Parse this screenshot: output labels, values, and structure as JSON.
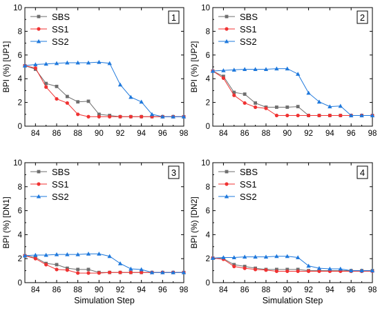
{
  "figure": {
    "xlabel": "Simulation Step"
  },
  "chart_data": [
    {
      "type": "line",
      "panel_label": "1",
      "ylabel": "BPI (%) [UP1]",
      "xlabel": "",
      "xlim": [
        83,
        98
      ],
      "ylim": [
        0,
        10
      ],
      "x_ticks": [
        84,
        86,
        88,
        90,
        92,
        94,
        96,
        98
      ],
      "y_ticks": [
        0,
        2,
        4,
        6,
        8,
        10
      ],
      "legend_position": "top-left",
      "grid": false,
      "x": [
        83,
        84,
        85,
        86,
        87,
        88,
        89,
        90,
        91,
        92,
        93,
        94,
        95,
        96,
        97,
        98
      ],
      "series": [
        {
          "name": "SBS",
          "color": "#6e6e6e",
          "marker": "square",
          "values": [
            5.1,
            4.8,
            3.6,
            3.35,
            2.5,
            2.05,
            2.1,
            1.0,
            0.9,
            0.8,
            0.8,
            0.8,
            0.8,
            0.8,
            0.8,
            0.8
          ]
        },
        {
          "name": "SS1",
          "color": "#f03232",
          "marker": "circle",
          "values": [
            5.1,
            4.9,
            3.3,
            2.3,
            1.95,
            1.0,
            0.8,
            0.8,
            0.8,
            0.8,
            0.8,
            0.8,
            0.8,
            0.8,
            0.8,
            0.8
          ]
        },
        {
          "name": "SS2",
          "color": "#1e78dc",
          "marker": "triangle",
          "values": [
            5.1,
            5.2,
            5.25,
            5.3,
            5.35,
            5.35,
            5.35,
            5.4,
            5.3,
            3.5,
            2.45,
            2.05,
            1.0,
            0.8,
            0.8,
            0.8
          ]
        }
      ]
    },
    {
      "type": "line",
      "panel_label": "2",
      "ylabel": "BPI (%) [UP2]",
      "xlabel": "",
      "xlim": [
        83,
        98
      ],
      "ylim": [
        0,
        10
      ],
      "x_ticks": [
        84,
        86,
        88,
        90,
        92,
        94,
        96,
        98
      ],
      "y_ticks": [
        0,
        2,
        4,
        6,
        8,
        10
      ],
      "legend_position": "top-left",
      "grid": false,
      "x": [
        83,
        84,
        85,
        86,
        87,
        88,
        89,
        90,
        91,
        92,
        93,
        94,
        95,
        96,
        97,
        98
      ],
      "series": [
        {
          "name": "SBS",
          "color": "#6e6e6e",
          "marker": "square",
          "values": [
            4.65,
            4.2,
            2.85,
            2.7,
            1.95,
            1.6,
            1.6,
            1.6,
            1.65,
            0.9,
            0.9,
            0.9,
            0.9,
            0.9,
            0.9,
            0.9
          ]
        },
        {
          "name": "SS1",
          "color": "#f03232",
          "marker": "circle",
          "values": [
            4.65,
            4.05,
            2.6,
            1.95,
            1.6,
            1.5,
            0.9,
            0.9,
            0.9,
            0.9,
            0.9,
            0.9,
            0.9,
            0.9,
            0.9,
            0.9
          ]
        },
        {
          "name": "SS2",
          "color": "#1e78dc",
          "marker": "triangle",
          "values": [
            4.65,
            4.7,
            4.75,
            4.8,
            4.8,
            4.8,
            4.85,
            4.85,
            4.4,
            2.8,
            2.05,
            1.65,
            1.7,
            0.9,
            0.9,
            0.9
          ]
        }
      ]
    },
    {
      "type": "line",
      "panel_label": "3",
      "ylabel": "BPI (%) [DN1]",
      "xlabel": "Simulation Step",
      "xlim": [
        83,
        98
      ],
      "ylim": [
        0,
        10
      ],
      "x_ticks": [
        84,
        86,
        88,
        90,
        92,
        94,
        96,
        98
      ],
      "y_ticks": [
        0,
        2,
        4,
        6,
        8,
        10
      ],
      "legend_position": "top-left",
      "grid": false,
      "x": [
        83,
        84,
        85,
        86,
        87,
        88,
        89,
        90,
        91,
        92,
        93,
        94,
        95,
        96,
        97,
        98
      ],
      "series": [
        {
          "name": "SBS",
          "color": "#6e6e6e",
          "marker": "square",
          "values": [
            2.25,
            2.1,
            1.6,
            1.5,
            1.2,
            1.1,
            1.1,
            0.85,
            0.85,
            0.85,
            0.85,
            0.85,
            0.85,
            0.85,
            0.85,
            0.85
          ]
        },
        {
          "name": "SS1",
          "color": "#f03232",
          "marker": "circle",
          "values": [
            2.25,
            2.0,
            1.5,
            1.1,
            1.05,
            0.8,
            0.8,
            0.8,
            0.85,
            0.85,
            0.85,
            0.85,
            0.85,
            0.85,
            0.85,
            0.85
          ]
        },
        {
          "name": "SS2",
          "color": "#1e78dc",
          "marker": "triangle",
          "values": [
            2.25,
            2.3,
            2.3,
            2.35,
            2.35,
            2.35,
            2.4,
            2.4,
            2.2,
            1.6,
            1.15,
            1.1,
            0.85,
            0.85,
            0.85,
            0.85
          ]
        }
      ]
    },
    {
      "type": "line",
      "panel_label": "4",
      "ylabel": "BPI (%) [DN2]",
      "xlabel": "Simulation Step",
      "xlim": [
        83,
        98
      ],
      "ylim": [
        0,
        10
      ],
      "x_ticks": [
        84,
        86,
        88,
        90,
        92,
        94,
        96,
        98
      ],
      "y_ticks": [
        0,
        2,
        4,
        6,
        8,
        10
      ],
      "legend_position": "top-left",
      "grid": false,
      "x": [
        83,
        84,
        85,
        86,
        87,
        88,
        89,
        90,
        91,
        92,
        93,
        94,
        95,
        96,
        97,
        98
      ],
      "series": [
        {
          "name": "SBS",
          "color": "#6e6e6e",
          "marker": "square",
          "values": [
            2.05,
            2.0,
            1.5,
            1.35,
            1.2,
            1.1,
            1.1,
            1.1,
            1.1,
            1.0,
            1.0,
            1.0,
            1.0,
            1.0,
            1.0,
            1.0
          ]
        },
        {
          "name": "SS1",
          "color": "#f03232",
          "marker": "circle",
          "values": [
            2.05,
            1.95,
            1.35,
            1.2,
            1.1,
            1.05,
            0.95,
            0.95,
            0.95,
            0.95,
            0.95,
            0.95,
            0.95,
            0.95,
            0.95,
            0.95
          ]
        },
        {
          "name": "SS2",
          "color": "#1e78dc",
          "marker": "triangle",
          "values": [
            2.05,
            2.1,
            2.1,
            2.15,
            2.15,
            2.15,
            2.2,
            2.2,
            2.1,
            1.4,
            1.2,
            1.15,
            1.15,
            1.0,
            1.0,
            1.0
          ]
        }
      ]
    }
  ]
}
